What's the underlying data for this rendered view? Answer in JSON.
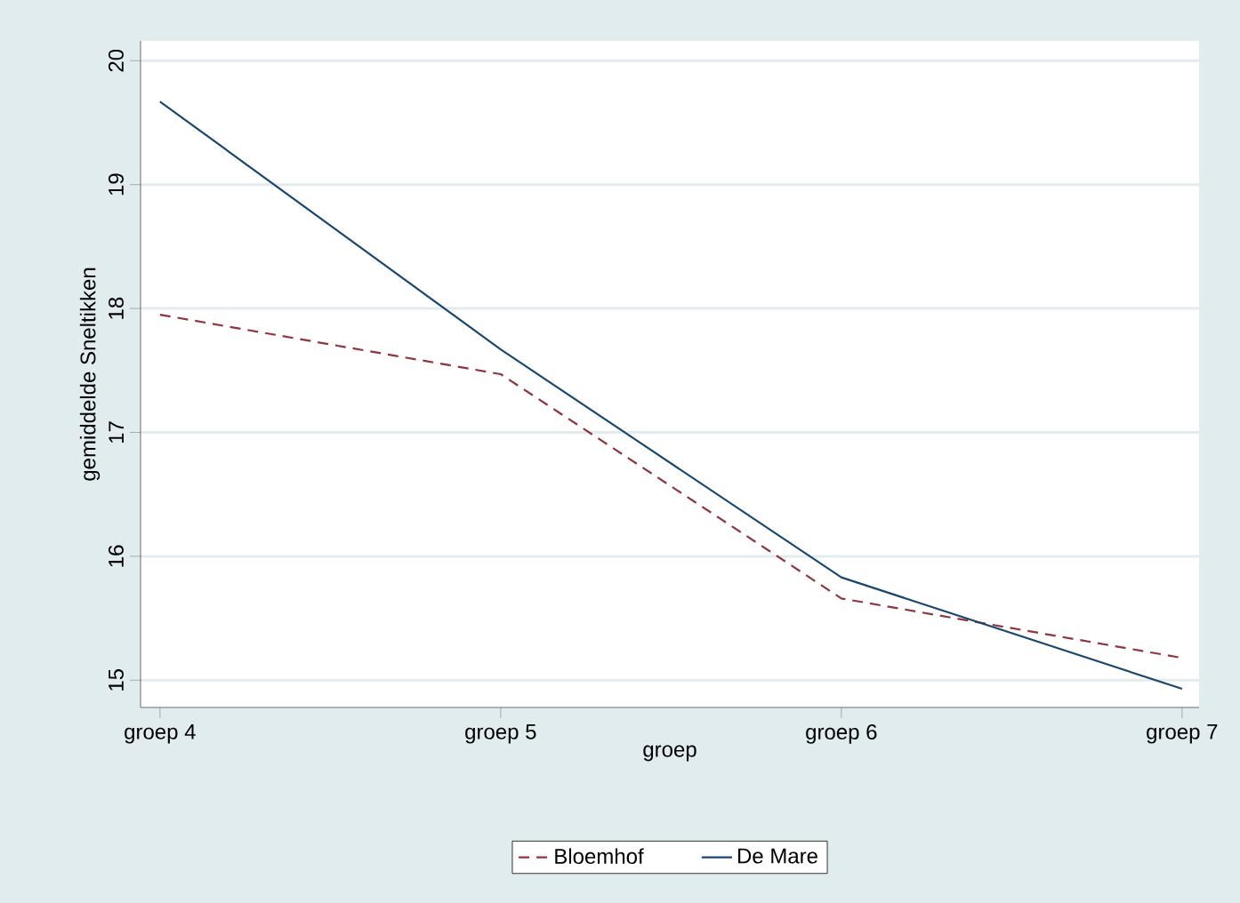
{
  "chart_data": {
    "type": "line",
    "xlabel": "groep",
    "ylabel": "gemiddelde Sneltikken",
    "categories": [
      "groep 4",
      "groep 5",
      "groep 6",
      "groep 7"
    ],
    "series": [
      {
        "name": "Bloemhof",
        "color": "#90353b",
        "line_style": "dashed",
        "values": [
          17.95,
          17.47,
          15.66,
          15.18
        ]
      },
      {
        "name": "De Mare",
        "color": "#1a476f",
        "line_style": "solid",
        "values": [
          19.67,
          17.67,
          15.83,
          14.93
        ]
      }
    ],
    "ylim": [
      14.78,
      20.16
    ],
    "yticks": [
      15,
      16,
      17,
      18,
      19,
      20
    ],
    "grid": "y",
    "legend": "bottom"
  }
}
